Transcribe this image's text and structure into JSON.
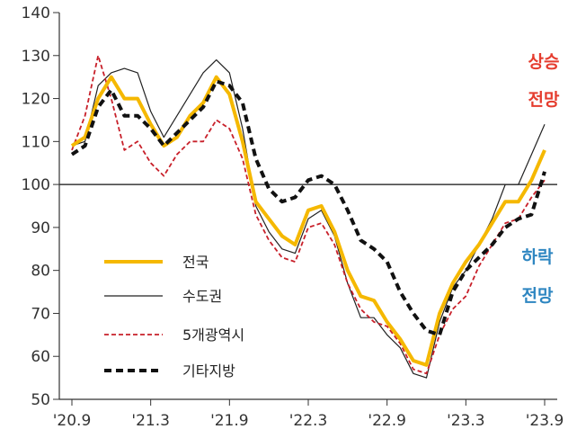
{
  "chart_data": {
    "type": "line",
    "title": "",
    "xlabel": "",
    "ylabel": "",
    "ylim": [
      50,
      140
    ],
    "yticks": [
      50,
      60,
      70,
      80,
      90,
      100,
      110,
      120,
      130,
      140
    ],
    "reference_line": 100,
    "x_tick_labels": [
      "'20.9",
      "'21.3",
      "'21.9",
      "'22.3",
      "'22.9",
      "'23.3",
      "'23.9"
    ],
    "legend_position": "left-middle",
    "colors": {
      "전국": "#F5B800",
      "수도권": "#222222",
      "5개광역시": "#C8202A",
      "기타지방": "#111111",
      "up_annotation": "#E53C2E",
      "down_annotation": "#2E86C1"
    },
    "series": [
      {
        "name": "전국",
        "style": "solid-thick",
        "values": [
          109,
          111,
          120,
          125,
          120,
          120,
          114,
          109,
          111,
          116,
          119,
          125,
          121,
          110,
          96,
          92,
          88,
          86,
          94,
          95,
          89,
          80,
          74,
          73,
          68,
          64,
          59,
          58,
          70,
          77,
          82,
          86,
          91,
          96,
          96,
          101,
          108
        ]
      },
      {
        "name": "수도권",
        "style": "solid-thin",
        "values": [
          109,
          110,
          123,
          126,
          127,
          126,
          117,
          111,
          116,
          121,
          126,
          129,
          126,
          113,
          95,
          89,
          85,
          84,
          92,
          94,
          88,
          77,
          69,
          69,
          65,
          62,
          56,
          55,
          68,
          76,
          80,
          86,
          92,
          100,
          100,
          107,
          114
        ]
      },
      {
        "name": "5개광역시",
        "style": "dashed-thin",
        "values": [
          108,
          116,
          130,
          120,
          108,
          110,
          105,
          102,
          107,
          110,
          110,
          115,
          113,
          106,
          93,
          87,
          83,
          82,
          90,
          91,
          86,
          77,
          71,
          68,
          67,
          63,
          57,
          56,
          65,
          71,
          74,
          81,
          86,
          91,
          92,
          97,
          101
        ]
      },
      {
        "name": "기타지방",
        "style": "dashed-thick",
        "values": [
          107,
          109,
          118,
          122,
          116,
          116,
          113,
          109,
          112,
          115,
          118,
          124,
          123,
          119,
          106,
          99,
          96,
          97,
          101,
          102,
          100,
          94,
          87,
          85,
          82,
          75,
          70,
          66,
          65,
          75,
          80,
          83,
          86,
          90,
          92,
          93,
          103
        ]
      }
    ],
    "annotations": {
      "up": [
        "상승",
        "전망"
      ],
      "down": [
        "하락",
        "전망"
      ]
    }
  }
}
